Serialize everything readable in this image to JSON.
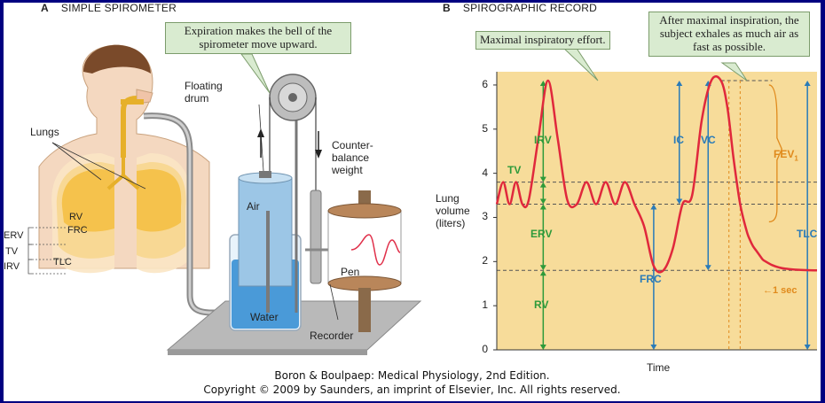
{
  "panel_a": {
    "heading_letter": "A",
    "heading_text": "SIMPLE SPIROMETER",
    "callout": "Expiration makes the bell of the spirometer move upward.",
    "labels": {
      "lungs": "Lungs",
      "floating_drum_1": "Floating",
      "floating_drum_2": "drum",
      "counterbalance_1": "Counter-",
      "counterbalance_2": "balance",
      "counterbalance_3": "weight",
      "air": "Air",
      "water": "Water",
      "pen": "Pen",
      "recorder": "Recorder",
      "rv": "RV",
      "frc": "FRC",
      "erv": "ERV",
      "tv": "TV",
      "tlc": "TLC",
      "irv": "IRV"
    }
  },
  "panel_b": {
    "heading_letter": "B",
    "heading_text": "SPIROGRAPHIC RECORD",
    "callout_left": "Maximal inspiratory effort.",
    "callout_right": "After maximal inspiration, the subject exhales as much air as fast as possible.",
    "ylabel_1": "Lung",
    "ylabel_2": "volume",
    "ylabel_3": "(liters)",
    "xlabel": "Time",
    "labels": {
      "irv": "IRV",
      "tv": "TV",
      "erv": "ERV",
      "rv": "RV",
      "ic": "IC",
      "vc": "VC",
      "frc": "FRC",
      "tlc": "TLC",
      "fev1": "FEV",
      "fev1_sub": "1",
      "one_sec": "1 sec"
    }
  },
  "chart_data": {
    "type": "line",
    "title": "SPIROGRAPHIC RECORD",
    "xlabel": "Time",
    "ylabel": "Lung volume (liters)",
    "ylim": [
      0,
      6
    ],
    "yticks": [
      0,
      1,
      2,
      3,
      4,
      5,
      6
    ],
    "grid": false,
    "reference_levels": {
      "end_tidal_inspiration": 3.8,
      "end_tidal_expiration": 3.3,
      "residual_volume": 1.8,
      "maximal_inspiration": 6.1
    },
    "series": [
      {
        "x": [
          0,
          2,
          4,
          6,
          8,
          10,
          13,
          16,
          19,
          22,
          25,
          28,
          31,
          34,
          37,
          40,
          43,
          46,
          49,
          52,
          55,
          58,
          61,
          64,
          67,
          70,
          72,
          74,
          76,
          78,
          79,
          80,
          81,
          82,
          83,
          84,
          86,
          88,
          90,
          95,
          100
        ],
        "y": [
          3.3,
          3.8,
          3.3,
          3.8,
          3.3,
          3.4,
          4.8,
          6.1,
          4.8,
          3.4,
          3.3,
          3.8,
          3.3,
          3.8,
          3.3,
          3.8,
          3.3,
          2.8,
          1.9,
          1.8,
          2.3,
          3.3,
          3.5,
          5.2,
          6.1,
          6.1,
          5.5,
          4.3,
          3.3,
          2.7,
          2.5,
          2.35,
          2.25,
          2.15,
          2.05,
          2.0,
          1.92,
          1.87,
          1.84,
          1.81,
          1.8
        ]
      }
    ]
  },
  "credit": {
    "line1": "Boron & Boulpaep: Medical Physiology, 2nd Edition.",
    "line2": "Copyright © 2009 by Saunders, an imprint of Elsevier, Inc. All rights reserved."
  }
}
